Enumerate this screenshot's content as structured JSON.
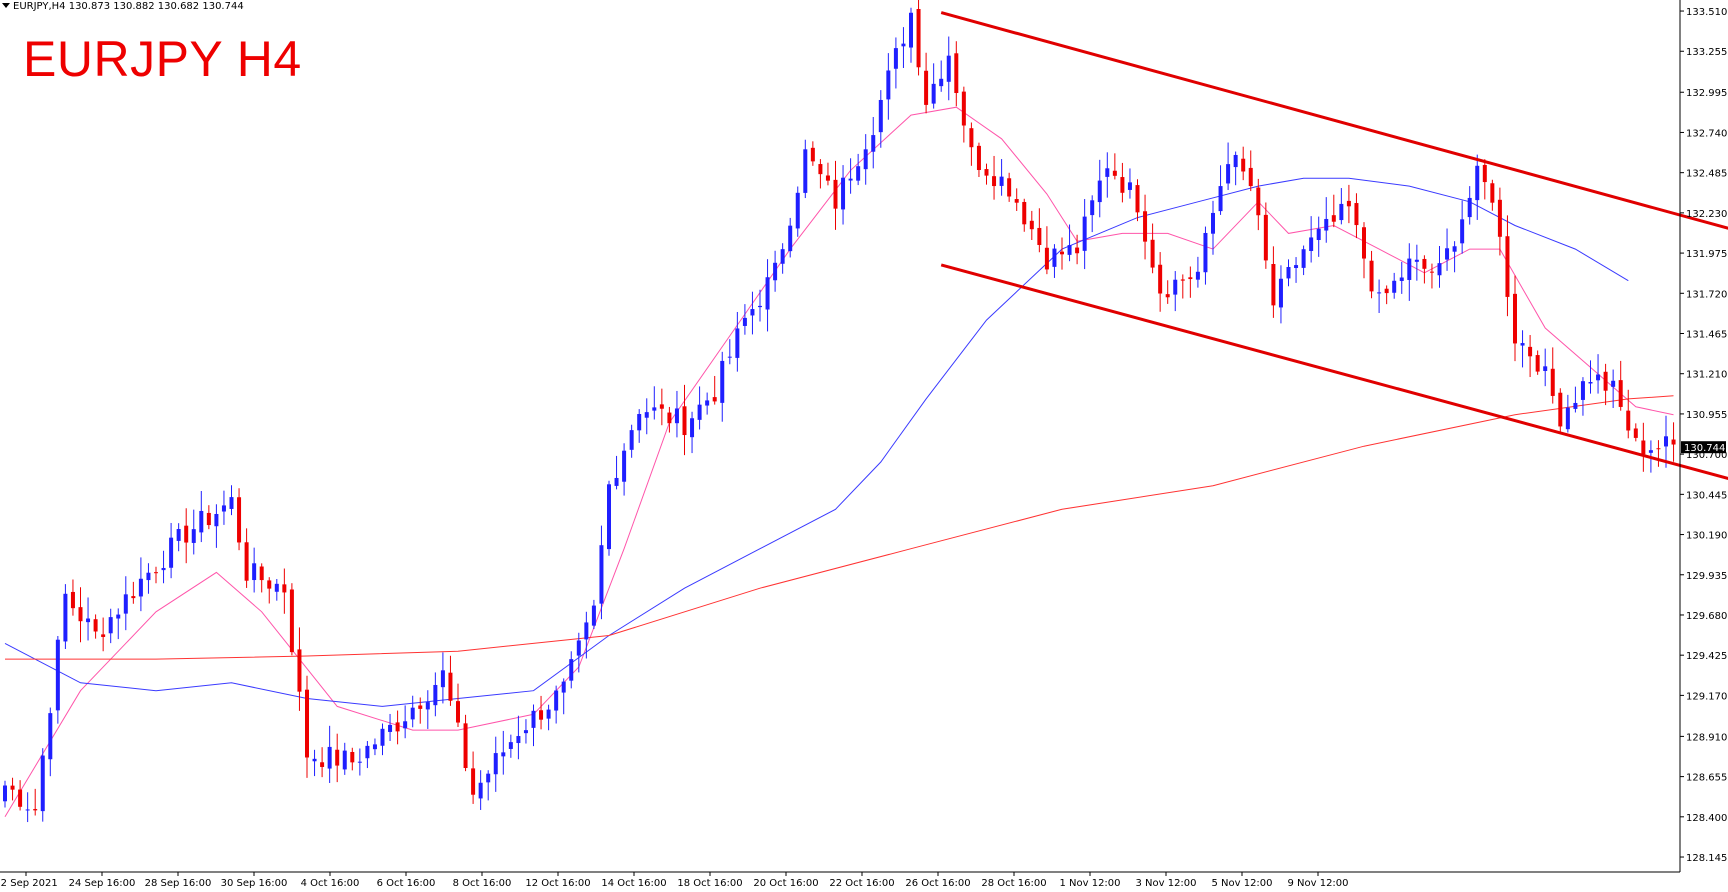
{
  "header": {
    "symbol": "EURJPY,H4",
    "open": "130.873",
    "high": "130.882",
    "low": "130.682",
    "close": "130.744"
  },
  "title": "EURJPY H4",
  "colors": {
    "bull": "#1f1fff",
    "bear": "#ee0000",
    "trend_channel": "#e00000",
    "ma_fast": "#ff55aa",
    "ma_mid": "#3a3aff",
    "ma_slow": "#ff3333",
    "axis": "#000000"
  },
  "chart_data": {
    "type": "candlestick",
    "ylim": [
      128.05,
      133.58
    ],
    "y_ticks": [
      "133.510",
      "133.255",
      "132.995",
      "132.740",
      "132.485",
      "132.230",
      "131.975",
      "131.720",
      "131.465",
      "131.210",
      "130.955",
      "130.700",
      "130.445",
      "130.190",
      "129.935",
      "129.680",
      "129.425",
      "129.170",
      "128.910",
      "128.655",
      "128.400",
      "128.145"
    ],
    "x_ticks": [
      "22 Sep 2021",
      "24 Sep 16:00",
      "28 Sep 16:00",
      "30 Sep 16:00",
      "4 Oct 16:00",
      "6 Oct 16:00",
      "8 Oct 16:00",
      "12 Oct 16:00",
      "14 Oct 16:00",
      "18 Oct 16:00",
      "20 Oct 16:00",
      "22 Oct 16:00",
      "26 Oct 16:00",
      "28 Oct 16:00",
      "1 Nov 12:00",
      "3 Nov 12:00",
      "5 Nov 12:00",
      "9 Nov 12:00"
    ],
    "current_price": "130.744",
    "anchors": [
      [
        0,
        128.6
      ],
      [
        4,
        128.45
      ],
      [
        8,
        129.8
      ],
      [
        12,
        129.55
      ],
      [
        18,
        129.9
      ],
      [
        24,
        130.2
      ],
      [
        30,
        130.4
      ],
      [
        32,
        129.95
      ],
      [
        37,
        129.85
      ],
      [
        40,
        128.8
      ],
      [
        46,
        128.75
      ],
      [
        52,
        129.0
      ],
      [
        58,
        129.3
      ],
      [
        62,
        128.55
      ],
      [
        68,
        128.95
      ],
      [
        74,
        129.2
      ],
      [
        78,
        129.7
      ],
      [
        80,
        130.5
      ],
      [
        84,
        131.0
      ],
      [
        90,
        130.9
      ],
      [
        94,
        131.1
      ],
      [
        98,
        131.55
      ],
      [
        102,
        131.85
      ],
      [
        106,
        132.6
      ],
      [
        110,
        132.3
      ],
      [
        115,
        132.8
      ],
      [
        120,
        133.5
      ],
      [
        122,
        132.95
      ],
      [
        125,
        133.25
      ],
      [
        128,
        132.6
      ],
      [
        133,
        132.4
      ],
      [
        138,
        131.95
      ],
      [
        142,
        132.0
      ],
      [
        146,
        132.55
      ],
      [
        150,
        132.3
      ],
      [
        153,
        131.75
      ],
      [
        158,
        131.85
      ],
      [
        162,
        132.6
      ],
      [
        165,
        132.4
      ],
      [
        168,
        131.65
      ],
      [
        172,
        132.0
      ],
      [
        178,
        132.25
      ],
      [
        182,
        131.65
      ],
      [
        186,
        131.9
      ],
      [
        190,
        131.85
      ],
      [
        195,
        132.45
      ],
      [
        197,
        132.35
      ],
      [
        200,
        131.45
      ],
      [
        203,
        131.3
      ],
      [
        206,
        130.95
      ],
      [
        210,
        131.2
      ],
      [
        213,
        131.1
      ],
      [
        216,
        130.75
      ],
      [
        221,
        130.75
      ]
    ],
    "moving_averages": [
      {
        "name": "MA fast",
        "points": [
          [
            0,
            128.4
          ],
          [
            10,
            129.2
          ],
          [
            20,
            129.7
          ],
          [
            28,
            129.95
          ],
          [
            34,
            129.7
          ],
          [
            44,
            129.1
          ],
          [
            54,
            128.95
          ],
          [
            60,
            128.95
          ],
          [
            70,
            129.05
          ],
          [
            76,
            129.35
          ],
          [
            82,
            130.1
          ],
          [
            88,
            130.9
          ],
          [
            96,
            131.45
          ],
          [
            104,
            132.0
          ],
          [
            112,
            132.5
          ],
          [
            120,
            132.85
          ],
          [
            126,
            132.9
          ],
          [
            132,
            132.7
          ],
          [
            138,
            132.35
          ],
          [
            142,
            132.05
          ],
          [
            148,
            132.1
          ],
          [
            154,
            132.1
          ],
          [
            160,
            132.0
          ],
          [
            166,
            132.3
          ],
          [
            170,
            132.1
          ],
          [
            176,
            132.15
          ],
          [
            182,
            132.0
          ],
          [
            188,
            131.85
          ],
          [
            194,
            132.0
          ],
          [
            198,
            132.0
          ],
          [
            204,
            131.5
          ],
          [
            210,
            131.25
          ],
          [
            216,
            131.0
          ],
          [
            221,
            130.95
          ]
        ]
      },
      {
        "name": "MA mid",
        "points": [
          [
            0,
            129.5
          ],
          [
            10,
            129.25
          ],
          [
            20,
            129.2
          ],
          [
            30,
            129.25
          ],
          [
            40,
            129.15
          ],
          [
            50,
            129.1
          ],
          [
            60,
            129.15
          ],
          [
            70,
            129.2
          ],
          [
            80,
            129.55
          ],
          [
            90,
            129.85
          ],
          [
            100,
            130.1
          ],
          [
            110,
            130.35
          ],
          [
            116,
            130.65
          ],
          [
            122,
            131.05
          ],
          [
            130,
            131.55
          ],
          [
            140,
            132.0
          ],
          [
            150,
            132.2
          ],
          [
            158,
            132.3
          ],
          [
            166,
            132.4
          ],
          [
            172,
            132.45
          ],
          [
            178,
            132.45
          ],
          [
            186,
            132.4
          ],
          [
            194,
            132.3
          ],
          [
            200,
            132.15
          ],
          [
            208,
            132.0
          ],
          [
            215,
            131.8
          ]
        ]
      },
      {
        "name": "MA slow",
        "points": [
          [
            0,
            129.4
          ],
          [
            20,
            129.4
          ],
          [
            40,
            129.42
          ],
          [
            60,
            129.45
          ],
          [
            80,
            129.55
          ],
          [
            100,
            129.85
          ],
          [
            120,
            130.1
          ],
          [
            140,
            130.35
          ],
          [
            160,
            130.5
          ],
          [
            180,
            130.75
          ],
          [
            200,
            130.95
          ],
          [
            215,
            131.05
          ],
          [
            221,
            131.07
          ]
        ]
      }
    ],
    "channel": [
      {
        "name": "upper",
        "from": [
          124,
          133.5
        ],
        "to": [
          281,
          131.44
        ]
      },
      {
        "name": "lower",
        "from": [
          124,
          131.9
        ],
        "to": [
          281,
          129.86
        ]
      }
    ]
  }
}
